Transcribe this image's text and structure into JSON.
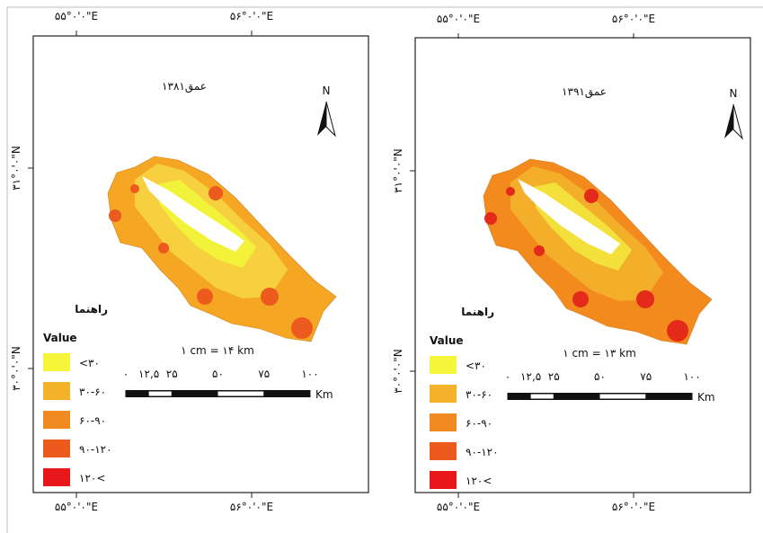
{
  "panels": [
    {
      "title": "عمق۱۳۸۱",
      "scale_text": "۱ cm = ۱۴ km",
      "lon_labels": [
        "۵۵°۰'۰\"E",
        "۵۶°۰'۰\"E"
      ],
      "lat_labels": [
        "۳۱°۰'۰\"N",
        "۳۰°۰'۰\"N"
      ],
      "zone_colors": [
        "#f5a623",
        "#f7d040",
        "#f2f23a",
        "#ec5a1e",
        "#e8321c"
      ]
    },
    {
      "title": "عمق۱۳۹۱",
      "scale_text": "۱ cm = ۱۳ km",
      "lon_labels": [
        "۵۵°۰'۰\"E",
        "۵۶°۰'۰\"E"
      ],
      "lat_labels": [
        "۳۱°۰'۰\"N",
        "۳۰°۰'۰\"N"
      ],
      "zone_colors": [
        "#f28a1e",
        "#f3ae2a",
        "#f3e03a",
        "#e8501c",
        "#e42a1a"
      ]
    }
  ],
  "north": "N",
  "legend": {
    "title": "راهنما",
    "subtitle": "Value",
    "items": [
      {
        "label": "<۳۰",
        "color": "#f5f53a"
      },
      {
        "label": "۳۰-۶۰",
        "color": "#f3b22a"
      },
      {
        "label": "۶۰-۹۰",
        "color": "#f28a22"
      },
      {
        "label": "۹۰-۱۲۰",
        "color": "#ec5a1e"
      },
      {
        "label": "۱۲۰<",
        "color": "#e8181a"
      }
    ]
  },
  "scale_ticks": [
    {
      "value": 0,
      "label": "۰"
    },
    {
      "value": 12.5,
      "label": "۱۲,۵"
    },
    {
      "value": 25,
      "label": "۲۵"
    },
    {
      "value": 50,
      "label": "۵۰"
    },
    {
      "value": 75,
      "label": "۷۵"
    },
    {
      "value": 100,
      "label": "۱۰۰"
    }
  ],
  "scale_unit": "Km"
}
